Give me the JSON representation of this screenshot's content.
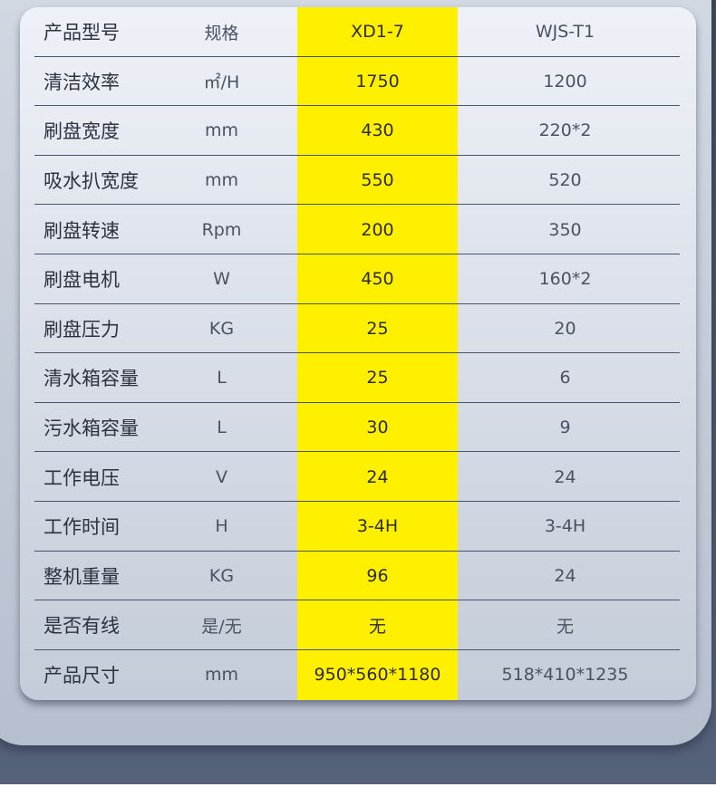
{
  "colors": {
    "highlight": "#fff000",
    "background": "#4f5b6e",
    "card": "#e6eaf1"
  },
  "table": {
    "header": [
      "产品型号",
      "规格",
      "XD1-7",
      "WJS-T1"
    ],
    "rows": [
      [
        "清洁效率",
        "㎡/H",
        "1750",
        "1200"
      ],
      [
        "刷盘宽度",
        "mm",
        "430",
        "220*2"
      ],
      [
        "吸水扒宽度",
        "mm",
        "550",
        "520"
      ],
      [
        "刷盘转速",
        "Rpm",
        "200",
        "350"
      ],
      [
        "刷盘电机",
        "W",
        "450",
        "160*2"
      ],
      [
        "刷盘压力",
        "KG",
        "25",
        "20"
      ],
      [
        "清水箱容量",
        "L",
        "25",
        "6"
      ],
      [
        "污水箱容量",
        "L",
        "30",
        "9"
      ],
      [
        "工作电压",
        "V",
        "24",
        "24"
      ],
      [
        "工作时间",
        "H",
        "3-4H",
        "3-4H"
      ],
      [
        "整机重量",
        "KG",
        "96",
        "24"
      ],
      [
        "是否有线",
        "是/无",
        "无",
        "无"
      ],
      [
        "产品尺寸",
        "mm",
        "950*560*1180",
        "518*410*1235"
      ]
    ]
  }
}
